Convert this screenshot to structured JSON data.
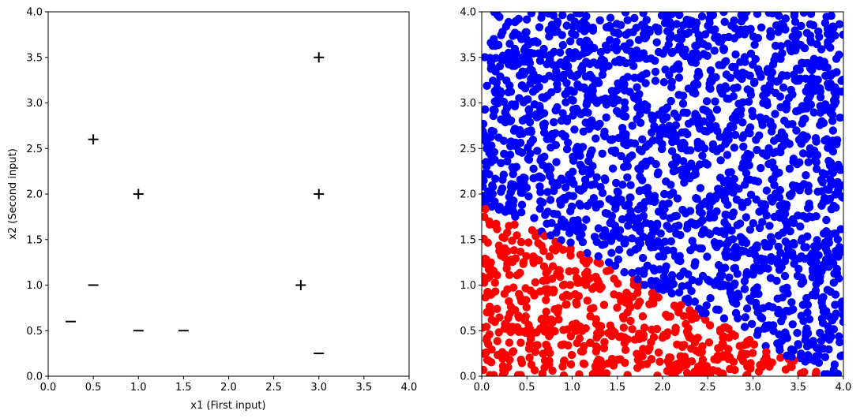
{
  "chart_data": [
    {
      "type": "scatter",
      "title": "",
      "xlabel": "x1 (First input)",
      "ylabel": "x2 (Second input)",
      "xlim": [
        0,
        4
      ],
      "ylim": [
        0,
        4
      ],
      "xticks": [
        "0.0",
        "0.5",
        "1.0",
        "1.5",
        "2.0",
        "2.5",
        "3.0",
        "3.5",
        "4.0"
      ],
      "yticks": [
        "0.0",
        "0.5",
        "1.0",
        "1.5",
        "2.0",
        "2.5",
        "3.0",
        "3.5",
        "4.0"
      ],
      "grid": false,
      "series": [
        {
          "marker": "plus",
          "color": "#000000",
          "points": [
            [
              0.5,
              2.6
            ],
            [
              1.0,
              2.0
            ],
            [
              3.0,
              3.5
            ],
            [
              3.0,
              2.0
            ],
            [
              2.8,
              1.0
            ]
          ]
        },
        {
          "marker": "minus",
          "color": "#000000",
          "points": [
            [
              0.25,
              0.6
            ],
            [
              0.5,
              1.0
            ],
            [
              1.0,
              0.5
            ],
            [
              1.5,
              0.5
            ],
            [
              3.0,
              0.25
            ]
          ]
        }
      ]
    },
    {
      "type": "scatter",
      "title": "",
      "xlabel": "",
      "ylabel": "",
      "xlim": [
        0,
        4
      ],
      "ylim": [
        0,
        4
      ],
      "xticks": [
        "0.0",
        "0.5",
        "1.0",
        "1.5",
        "2.0",
        "2.5",
        "3.0",
        "3.5",
        "4.0"
      ],
      "yticks": [
        "0.0",
        "0.5",
        "1.0",
        "1.5",
        "2.0",
        "2.5",
        "3.0",
        "3.5",
        "4.0"
      ],
      "grid": false,
      "sampled_points": 2500,
      "sampled_domain": [
        [
          0,
          4
        ],
        [
          0,
          4
        ]
      ],
      "decision_boundary": {
        "equation": "x2 = 1.9 - 0.5 * x1",
        "above_class_color": "#0000ff",
        "below_class_color": "#ff0000"
      },
      "colors": {
        "above": "#0000ff",
        "below": "#ff0000"
      }
    }
  ]
}
